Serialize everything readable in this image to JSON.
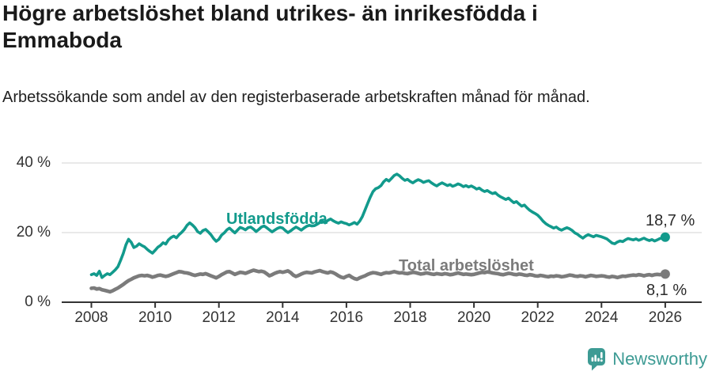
{
  "chart_data": {
    "type": "line",
    "title": "Högre arbetslöshet bland utrikes- än inrikesfödda i Emmaboda",
    "subtitle": "Arbetssökande som andel av den registerbaserade arbetskraften månad för månad.",
    "xlabel": "",
    "ylabel": "",
    "x_start_year": 2008,
    "points_per_year": 12,
    "xlim": [
      2007.1,
      2026.4
    ],
    "ylim": [
      0,
      44
    ],
    "grid": "horizontal",
    "legend_position": "inline-labels",
    "x_ticks": [
      "2008",
      "2010",
      "2012",
      "2014",
      "2016",
      "2018",
      "2020",
      "2022",
      "2024",
      "2026"
    ],
    "y_ticks": [
      {
        "value": 40,
        "label": "40 %"
      },
      {
        "value": 20,
        "label": "20 %"
      },
      {
        "value": 0,
        "label": "0 %"
      }
    ],
    "colors": {
      "utlandsfodda": "#129a8c",
      "total": "#7b7b7b",
      "grid": "#dcdcdc",
      "axis": "#333333"
    },
    "series": [
      {
        "name": "Utlandsfödda",
        "color": "#129a8c",
        "end_label": "18,7 %",
        "end_value": 18.7,
        "values": [
          7.9,
          8.2,
          7.7,
          8.9,
          7.1,
          7.7,
          8.2,
          7.9,
          8.6,
          9.3,
          10.2,
          12.0,
          14.0,
          16.5,
          18.1,
          17.2,
          15.7,
          16.1,
          16.8,
          16.3,
          15.9,
          15.2,
          14.6,
          14.1,
          14.9,
          15.8,
          16.3,
          17.1,
          16.7,
          17.9,
          18.6,
          19.0,
          18.5,
          19.4,
          20.1,
          20.9,
          22.1,
          22.8,
          22.2,
          21.4,
          20.3,
          19.8,
          20.6,
          20.9,
          20.2,
          19.4,
          18.3,
          17.5,
          18.1,
          19.3,
          19.9,
          20.8,
          21.3,
          20.6,
          19.9,
          20.7,
          21.5,
          21.2,
          20.8,
          21.4,
          21.6,
          21.0,
          20.3,
          20.9,
          21.6,
          21.9,
          21.4,
          20.8,
          20.2,
          20.7,
          21.2,
          21.5,
          21.3,
          20.6,
          20.0,
          20.5,
          21.1,
          21.6,
          21.2,
          20.7,
          21.3,
          21.8,
          22.1,
          21.9,
          22.0,
          22.4,
          22.9,
          23.3,
          22.8,
          23.5,
          23.9,
          23.4,
          23.0,
          22.7,
          23.1,
          22.8,
          22.6,
          22.2,
          22.5,
          22.9,
          22.4,
          23.3,
          24.6,
          26.5,
          28.4,
          30.2,
          31.8,
          32.6,
          32.9,
          33.5,
          34.6,
          35.3,
          34.8,
          35.6,
          36.4,
          36.8,
          36.3,
          35.6,
          35.0,
          35.3,
          34.7,
          34.3,
          34.8,
          35.2,
          34.9,
          34.4,
          34.7,
          34.9,
          34.3,
          33.8,
          33.4,
          33.9,
          34.3,
          33.9,
          33.5,
          33.8,
          33.3,
          33.6,
          34.0,
          33.7,
          33.2,
          33.5,
          33.1,
          33.4,
          33.0,
          32.5,
          32.8,
          32.2,
          31.8,
          32.1,
          31.6,
          31.2,
          31.5,
          30.8,
          30.3,
          29.9,
          29.5,
          29.9,
          29.2,
          28.6,
          28.9,
          28.2,
          27.6,
          27.9,
          27.1,
          26.4,
          25.9,
          25.5,
          25.0,
          24.2,
          23.3,
          22.6,
          22.1,
          21.7,
          21.3,
          21.6,
          21.0,
          20.7,
          21.1,
          21.4,
          21.1,
          20.6,
          19.9,
          19.5,
          18.9,
          18.4,
          19.0,
          19.4,
          19.1,
          18.8,
          19.2,
          19.0,
          18.8,
          18.5,
          18.2,
          17.6,
          17.0,
          16.8,
          17.3,
          17.6,
          17.4,
          17.9,
          18.3,
          18.1,
          17.9,
          18.2,
          17.8,
          18.1,
          18.4,
          18.0,
          17.7,
          18.0,
          17.6,
          17.9,
          18.3,
          18.5,
          18.7
        ]
      },
      {
        "name": "Total arbetslöshet",
        "color": "#7b7b7b",
        "end_label": "8,1 %",
        "end_value": 8.1,
        "values": [
          4.0,
          4.1,
          3.8,
          3.9,
          3.6,
          3.4,
          3.2,
          3.0,
          3.3,
          3.7,
          4.1,
          4.6,
          5.1,
          5.7,
          6.2,
          6.6,
          7.0,
          7.3,
          7.6,
          7.7,
          7.6,
          7.7,
          7.5,
          7.2,
          7.4,
          7.7,
          7.8,
          7.6,
          7.4,
          7.6,
          7.9,
          8.2,
          8.5,
          8.8,
          8.7,
          8.5,
          8.4,
          8.2,
          7.9,
          7.7,
          7.9,
          8.1,
          8.0,
          8.2,
          7.9,
          7.6,
          7.3,
          7.0,
          7.4,
          7.9,
          8.3,
          8.7,
          8.8,
          8.4,
          8.0,
          8.3,
          8.6,
          8.5,
          8.3,
          8.6,
          8.9,
          9.2,
          9.0,
          8.8,
          8.9,
          8.7,
          8.2,
          7.6,
          7.9,
          8.3,
          8.6,
          8.8,
          8.6,
          8.8,
          9.0,
          8.5,
          7.8,
          7.4,
          7.7,
          8.1,
          8.4,
          8.6,
          8.5,
          8.4,
          8.7,
          8.9,
          9.1,
          8.8,
          8.6,
          8.4,
          8.7,
          8.5,
          8.1,
          7.6,
          7.2,
          7.0,
          7.4,
          7.7,
          7.2,
          6.8,
          6.6,
          7.0,
          7.3,
          7.6,
          8.0,
          8.3,
          8.5,
          8.4,
          8.2,
          8.0,
          8.3,
          8.5,
          8.4,
          8.6,
          8.8,
          8.6,
          8.4,
          8.5,
          8.3,
          8.2,
          8.4,
          8.6,
          8.5,
          8.3,
          8.1,
          8.2,
          8.4,
          8.3,
          8.1,
          8.0,
          8.2,
          8.1,
          8.0,
          8.2,
          8.1,
          7.9,
          8.0,
          8.2,
          8.4,
          8.2,
          8.0,
          8.1,
          8.0,
          7.9,
          8.0,
          8.2,
          8.4,
          8.6,
          8.5,
          8.7,
          8.6,
          8.4,
          8.3,
          8.2,
          8.0,
          7.9,
          8.1,
          8.3,
          8.2,
          8.0,
          7.9,
          8.1,
          8.0,
          7.8,
          7.7,
          7.9,
          7.8,
          7.6,
          7.5,
          7.7,
          7.6,
          7.4,
          7.3,
          7.5,
          7.4,
          7.6,
          7.5,
          7.3,
          7.4,
          7.6,
          7.8,
          7.7,
          7.5,
          7.4,
          7.6,
          7.5,
          7.3,
          7.5,
          7.7,
          7.6,
          7.4,
          7.5,
          7.6,
          7.5,
          7.3,
          7.2,
          7.4,
          7.3,
          7.1,
          7.3,
          7.5,
          7.4,
          7.6,
          7.7,
          7.8,
          7.7,
          7.9,
          7.8,
          7.6,
          7.8,
          7.9,
          7.7,
          7.9,
          8.0,
          7.9,
          8.0,
          8.1
        ]
      }
    ]
  },
  "footer": {
    "brand": "Newsworthy",
    "brand_color": "#3d9b94"
  }
}
